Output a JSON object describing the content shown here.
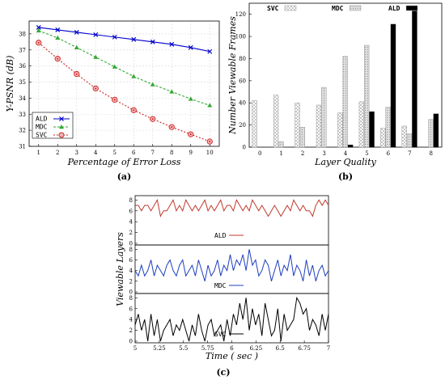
{
  "panels": {
    "a": "(a)",
    "b": "(b)",
    "c": "(c)"
  },
  "chart_data": [
    {
      "type": "line",
      "xlabel": "Percentage of Error Loss",
      "ylabel": "Y-PSNR (dB)",
      "x": [
        1,
        2,
        3,
        4,
        5,
        6,
        7,
        8,
        9,
        10
      ],
      "xlim": [
        0.5,
        10.5
      ],
      "ylim": [
        31,
        38.8
      ],
      "xticks": [
        "1",
        "2",
        "3",
        "4",
        "5",
        "6",
        "7",
        "8",
        "9",
        "10"
      ],
      "yticks": [
        "31",
        "32",
        "33",
        "34",
        "35",
        "36",
        "37",
        "38"
      ],
      "legend_position": "bottom-left",
      "series": [
        {
          "name": "ALD",
          "color": "#0000cc",
          "marker": "x",
          "values": [
            38.4,
            38.25,
            38.1,
            37.95,
            37.8,
            37.65,
            37.5,
            37.35,
            37.15,
            36.9
          ]
        },
        {
          "name": "MDC",
          "color": "#33aa33",
          "marker": "triangle",
          "values": [
            38.2,
            37.75,
            37.15,
            36.55,
            35.95,
            35.35,
            34.85,
            34.4,
            33.95,
            33.55
          ]
        },
        {
          "name": "SVC",
          "color": "#cc2222",
          "marker": "circle",
          "values": [
            37.45,
            36.45,
            35.5,
            34.6,
            33.9,
            33.25,
            32.7,
            32.2,
            31.75,
            31.3
          ]
        }
      ]
    },
    {
      "type": "bar",
      "xlabel": "Layer Quality",
      "ylabel": "Number Viewable Frames",
      "categories": [
        "0",
        "1",
        "2",
        "3",
        "4",
        "5",
        "6",
        "7",
        "8"
      ],
      "ylim": [
        0,
        130
      ],
      "yticks": [
        "0",
        "20",
        "40",
        "60",
        "80",
        "100",
        "120"
      ],
      "legend_position": "top",
      "series": [
        {
          "name": "SVC",
          "values": [
            42,
            47,
            40,
            38,
            31,
            41,
            17,
            19,
            0
          ]
        },
        {
          "name": "MDC",
          "values": [
            0,
            5,
            18,
            54,
            82,
            92,
            36,
            12,
            25
          ]
        },
        {
          "name": "ALD",
          "values": [
            0,
            0,
            0,
            0,
            2,
            32,
            111,
            123,
            30
          ]
        }
      ]
    },
    {
      "type": "line",
      "xlabel": "Time ( sec )",
      "ylabel": "Viewable Layers",
      "xlim": [
        5,
        7
      ],
      "xticks": [
        "5",
        "5.25",
        "5.5",
        "5.75",
        "6",
        "6.25",
        "6.5",
        "6.75",
        "7"
      ],
      "subplot_yticks": [
        "0",
        "2",
        "4",
        "6",
        "8"
      ],
      "series": [
        {
          "name": "ALD",
          "color": "#c0392b",
          "ylim": [
            0,
            8.5
          ],
          "values": [
            7,
            7,
            6,
            7,
            7,
            6,
            7,
            8,
            5,
            6,
            6,
            7,
            8,
            6,
            7,
            6,
            8,
            7,
            6,
            7,
            6,
            7,
            8,
            6,
            7,
            6,
            7,
            8,
            6,
            7,
            7,
            6,
            8,
            7,
            6,
            7,
            6,
            8,
            7,
            6,
            7,
            6,
            5,
            6,
            7,
            6,
            5,
            6,
            7,
            6,
            8,
            7,
            6,
            7,
            6,
            6,
            5,
            7,
            8,
            7,
            8,
            7
          ]
        },
        {
          "name": "MDC",
          "color": "#1f3fbf",
          "ylim": [
            0,
            8.5
          ],
          "values": [
            4,
            3,
            5,
            3,
            4,
            6,
            3,
            5,
            4,
            3,
            5,
            6,
            4,
            3,
            5,
            6,
            3,
            4,
            5,
            3,
            6,
            4,
            2,
            5,
            3,
            4,
            6,
            3,
            5,
            4,
            7,
            4,
            6,
            5,
            7,
            4,
            8,
            5,
            6,
            3,
            4,
            6,
            5,
            2,
            4,
            6,
            3,
            5,
            4,
            7,
            3,
            5,
            4,
            2,
            6,
            3,
            5,
            2,
            4,
            5,
            3,
            4
          ]
        },
        {
          "name": "SVC",
          "color": "#000000",
          "ylim": [
            0,
            8.5
          ],
          "values": [
            3,
            5,
            2,
            4,
            0,
            5,
            1,
            4,
            0,
            2,
            3,
            4,
            1,
            3,
            2,
            4,
            2,
            0,
            3,
            1,
            5,
            2,
            0,
            3,
            4,
            1,
            2,
            3,
            0,
            4,
            1,
            5,
            3,
            7,
            4,
            8,
            2,
            6,
            3,
            5,
            1,
            7,
            4,
            1,
            2,
            6,
            0,
            5,
            2,
            3,
            4,
            8,
            7,
            5,
            6,
            2,
            4,
            3,
            1,
            5,
            2,
            5
          ]
        }
      ]
    }
  ]
}
